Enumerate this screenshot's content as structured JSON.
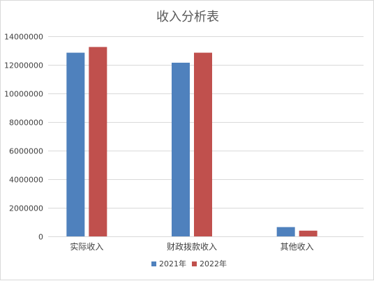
{
  "chart_data": {
    "type": "bar",
    "title": "收入分析表",
    "xlabel": "",
    "ylabel": "",
    "categories": [
      "实际收入",
      "财政拨款收入",
      "其他收入"
    ],
    "series": [
      {
        "name": "2021年",
        "color": "#4f81bd",
        "values": [
          12850000,
          12150000,
          650000
        ]
      },
      {
        "name": "2022年",
        "color": "#c0504d",
        "values": [
          13250000,
          12850000,
          400000
        ]
      }
    ],
    "ylim": [
      0,
      14000000
    ],
    "yticks": [
      "0",
      "2000000",
      "4000000",
      "6000000",
      "8000000",
      "10000000",
      "12000000",
      "14000000"
    ],
    "grid": true,
    "legend_position": "bottom"
  }
}
